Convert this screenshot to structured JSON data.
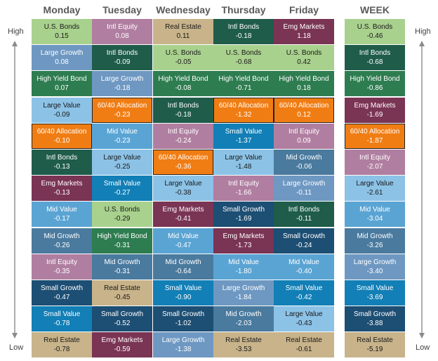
{
  "axis": {
    "high_label": "High",
    "low_label": "Low"
  },
  "colors": {
    "U.S. Bonds": "#a9d18e",
    "Intl Equity": "#b07ea0",
    "Real Estate": "#c8b38a",
    "Intl Bonds": "#1f5c4a",
    "Emg Markets": "#7a3454",
    "Large Growth": "#6e98c2",
    "High Yield Bond": "#2e7d50",
    "Large Value": "#8cc2e6",
    "60/40 Allocation": "#f07d14",
    "Mid Value": "#5aa4d4",
    "Mid Growth": "#4a7a9e",
    "Small Value": "#127fb6",
    "Small Growth": "#1d4e73"
  },
  "chart_data": {
    "type": "table",
    "columns": [
      {
        "label": "Monday",
        "items": [
          {
            "name": "U.S. Bonds",
            "value": "0.15"
          },
          {
            "name": "Large Growth",
            "value": "0.08"
          },
          {
            "name": "High Yield Bond",
            "value": "0.07"
          },
          {
            "name": "Large Value",
            "value": "-0.09"
          },
          {
            "name": "60/40 Allocation",
            "value": "-0.10"
          },
          {
            "name": "Intl Bonds",
            "value": "-0.13"
          },
          {
            "name": "Emg Markets",
            "value": "-0.13"
          },
          {
            "name": "Mid Value",
            "value": "-0.17"
          },
          {
            "name": "Mid Growth",
            "value": "-0.26"
          },
          {
            "name": "Intl Equity",
            "value": "-0.35"
          },
          {
            "name": "Small Growth",
            "value": "-0.47"
          },
          {
            "name": "Small Value",
            "value": "-0.78"
          },
          {
            "name": "Real Estate",
            "value": "-0.78"
          }
        ]
      },
      {
        "label": "Tuesday",
        "items": [
          {
            "name": "Intl Equity",
            "value": "0.08"
          },
          {
            "name": "Intl Bonds",
            "value": "-0.09"
          },
          {
            "name": "Large Growth",
            "value": "-0.18"
          },
          {
            "name": "60/40 Allocation",
            "value": "-0.23"
          },
          {
            "name": "Mid Value",
            "value": "-0.23"
          },
          {
            "name": "Large Value",
            "value": "-0.25"
          },
          {
            "name": "Small Value",
            "value": "-0.27"
          },
          {
            "name": "U.S. Bonds",
            "value": "-0.29"
          },
          {
            "name": "High Yield Bond",
            "value": "-0.31"
          },
          {
            "name": "Mid Growth",
            "value": "-0.31"
          },
          {
            "name": "Real Estate",
            "value": "-0.45"
          },
          {
            "name": "Small Growth",
            "value": "-0.52"
          },
          {
            "name": "Emg Markets",
            "value": "-0.59"
          }
        ]
      },
      {
        "label": "Wednesday",
        "items": [
          {
            "name": "Real Estate",
            "value": "0.11"
          },
          {
            "name": "U.S. Bonds",
            "value": "-0.05"
          },
          {
            "name": "High Yield Bond",
            "value": "-0.08"
          },
          {
            "name": "Intl Bonds",
            "value": "-0.18"
          },
          {
            "name": "Intl Equity",
            "value": "-0.24"
          },
          {
            "name": "60/40 Allocation",
            "value": "-0.36"
          },
          {
            "name": "Large Value",
            "value": "-0.38"
          },
          {
            "name": "Emg Markets",
            "value": "-0.41"
          },
          {
            "name": "Mid Value",
            "value": "-0.47"
          },
          {
            "name": "Mid Growth",
            "value": "-0.64"
          },
          {
            "name": "Small Value",
            "value": "-0.90"
          },
          {
            "name": "Small Growth",
            "value": "-1.02"
          },
          {
            "name": "Large Growth",
            "value": "-1.38"
          }
        ]
      },
      {
        "label": "Thursday",
        "items": [
          {
            "name": "Intl Bonds",
            "value": "-0.18"
          },
          {
            "name": "U.S. Bonds",
            "value": "-0.68"
          },
          {
            "name": "High Yield Bond",
            "value": "-0.71"
          },
          {
            "name": "60/40 Allocation",
            "value": "-1.32"
          },
          {
            "name": "Small Value",
            "value": "-1.37"
          },
          {
            "name": "Large Value",
            "value": "-1.48"
          },
          {
            "name": "Intl Equity",
            "value": "-1.66"
          },
          {
            "name": "Small Growth",
            "value": "-1.69"
          },
          {
            "name": "Emg Markets",
            "value": "-1.73"
          },
          {
            "name": "Mid Value",
            "value": "-1.80"
          },
          {
            "name": "Large Growth",
            "value": "-1.84"
          },
          {
            "name": "Mid Growth",
            "value": "-2.03"
          },
          {
            "name": "Real Estate",
            "value": "-3.53"
          }
        ]
      },
      {
        "label": "Friday",
        "items": [
          {
            "name": "Emg Markets",
            "value": "1.18"
          },
          {
            "name": "U.S. Bonds",
            "value": "0.42"
          },
          {
            "name": "High Yield Bond",
            "value": "0.18"
          },
          {
            "name": "60/40 Allocation",
            "value": "0.12"
          },
          {
            "name": "Intl Equity",
            "value": "0.09"
          },
          {
            "name": "Mid Growth",
            "value": "-0.06"
          },
          {
            "name": "Large Growth",
            "value": "-0.11"
          },
          {
            "name": "Intl Bonds",
            "value": "-0.11"
          },
          {
            "name": "Small Growth",
            "value": "-0.24"
          },
          {
            "name": "Mid Value",
            "value": "-0.40"
          },
          {
            "name": "Small Value",
            "value": "-0.42"
          },
          {
            "name": "Large Value",
            "value": "-0.43"
          },
          {
            "name": "Real Estate",
            "value": "-0.61"
          }
        ]
      },
      {
        "label": "WEEK",
        "items": [
          {
            "name": "U.S. Bonds",
            "value": "-0.46"
          },
          {
            "name": "Intl Bonds",
            "value": "-0.68"
          },
          {
            "name": "High Yield Bond",
            "value": "-0.86"
          },
          {
            "name": "Emg Markets",
            "value": "-1.69"
          },
          {
            "name": "60/40 Allocation",
            "value": "-1.87"
          },
          {
            "name": "Intl Equity",
            "value": "-2.07"
          },
          {
            "name": "Large Value",
            "value": "-2.61"
          },
          {
            "name": "Mid Value",
            "value": "-3.04"
          },
          {
            "name": "Mid Growth",
            "value": "-3.26"
          },
          {
            "name": "Large Growth",
            "value": "-3.40"
          },
          {
            "name": "Small Value",
            "value": "-3.69"
          },
          {
            "name": "Small Growth",
            "value": "-3.88"
          },
          {
            "name": "Real Estate",
            "value": "-5.19"
          }
        ]
      }
    ]
  }
}
